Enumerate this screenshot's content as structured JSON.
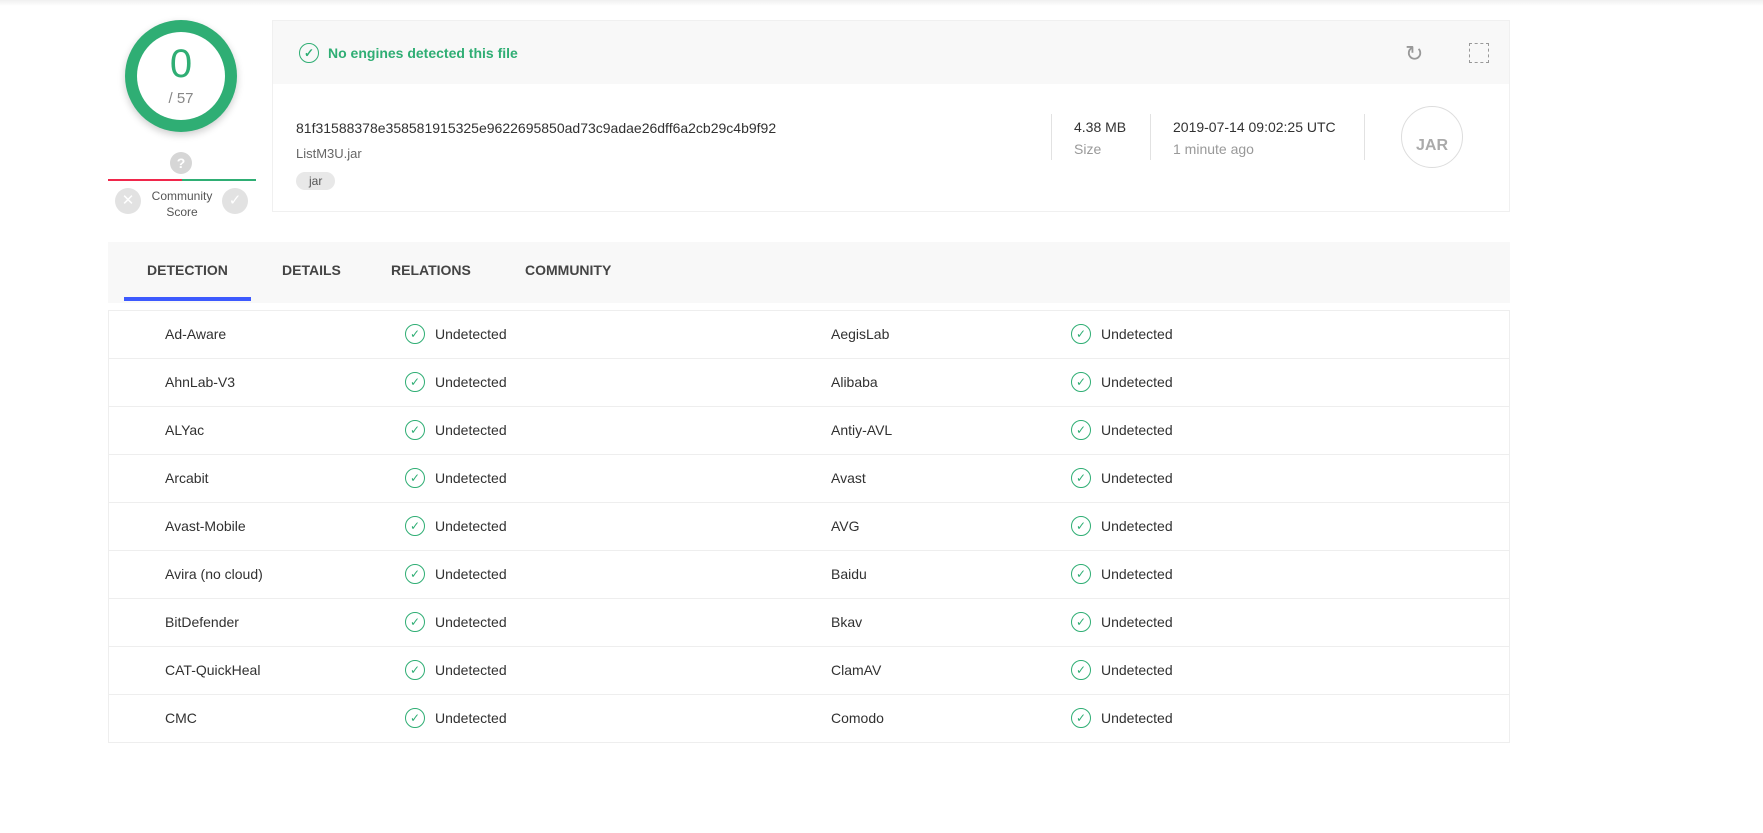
{
  "score": {
    "detected": "0",
    "total": "/ 57"
  },
  "community": {
    "label": "Community Score",
    "unknown": "?"
  },
  "summary": {
    "status": "No engines detected this file",
    "hash": "81f31588378e358581915325e9622695850ad73c9adae26dff6a2cb29c4b9f92",
    "filename": "ListM3U.jar",
    "tag": "jar",
    "size": "4.38 MB",
    "size_label": "Size",
    "date": "2019-07-14 09:02:25 UTC",
    "date_ago": "1 minute ago",
    "file_type": "JAR"
  },
  "tabs": [
    "DETECTION",
    "DETAILS",
    "RELATIONS",
    "COMMUNITY"
  ],
  "colors": {
    "clean": "#2fae74",
    "malicious": "#f0274b",
    "tab_accent": "#3d5afe"
  },
  "detections": [
    [
      "Ad-Aware",
      "Undetected",
      "AegisLab",
      "Undetected"
    ],
    [
      "AhnLab-V3",
      "Undetected",
      "Alibaba",
      "Undetected"
    ],
    [
      "ALYac",
      "Undetected",
      "Antiy-AVL",
      "Undetected"
    ],
    [
      "Arcabit",
      "Undetected",
      "Avast",
      "Undetected"
    ],
    [
      "Avast-Mobile",
      "Undetected",
      "AVG",
      "Undetected"
    ],
    [
      "Avira (no cloud)",
      "Undetected",
      "Baidu",
      "Undetected"
    ],
    [
      "BitDefender",
      "Undetected",
      "Bkav",
      "Undetected"
    ],
    [
      "CAT-QuickHeal",
      "Undetected",
      "ClamAV",
      "Undetected"
    ],
    [
      "CMC",
      "Undetected",
      "Comodo",
      "Undetected"
    ]
  ]
}
